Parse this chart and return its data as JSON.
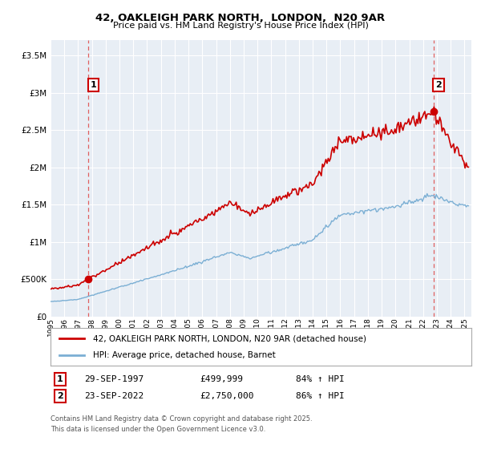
{
  "title": "42, OAKLEIGH PARK NORTH,  LONDON,  N20 9AR",
  "subtitle": "Price paid vs. HM Land Registry's House Price Index (HPI)",
  "sale1_price": 499999,
  "sale2_price": 2750000,
  "line1_color": "#cc0000",
  "line2_color": "#7bafd4",
  "marker_color": "#cc0000",
  "dashed_vline_color": "#e06060",
  "background_color": "#ffffff",
  "chart_bg_color": "#e8eef5",
  "grid_color": "#ffffff",
  "legend1_label": "42, OAKLEIGH PARK NORTH, LONDON, N20 9AR (detached house)",
  "legend2_label": "HPI: Average price, detached house, Barnet",
  "footer": "Contains HM Land Registry data © Crown copyright and database right 2025.\nThis data is licensed under the Open Government Licence v3.0.",
  "ylim": [
    0,
    3700000
  ],
  "yticks": [
    0,
    500000,
    1000000,
    1500000,
    2000000,
    2500000,
    3000000,
    3500000
  ],
  "xlim_start": 1995.0,
  "xlim_end": 2025.5,
  "sale1_x": 1997.75,
  "sale2_x": 2022.75
}
